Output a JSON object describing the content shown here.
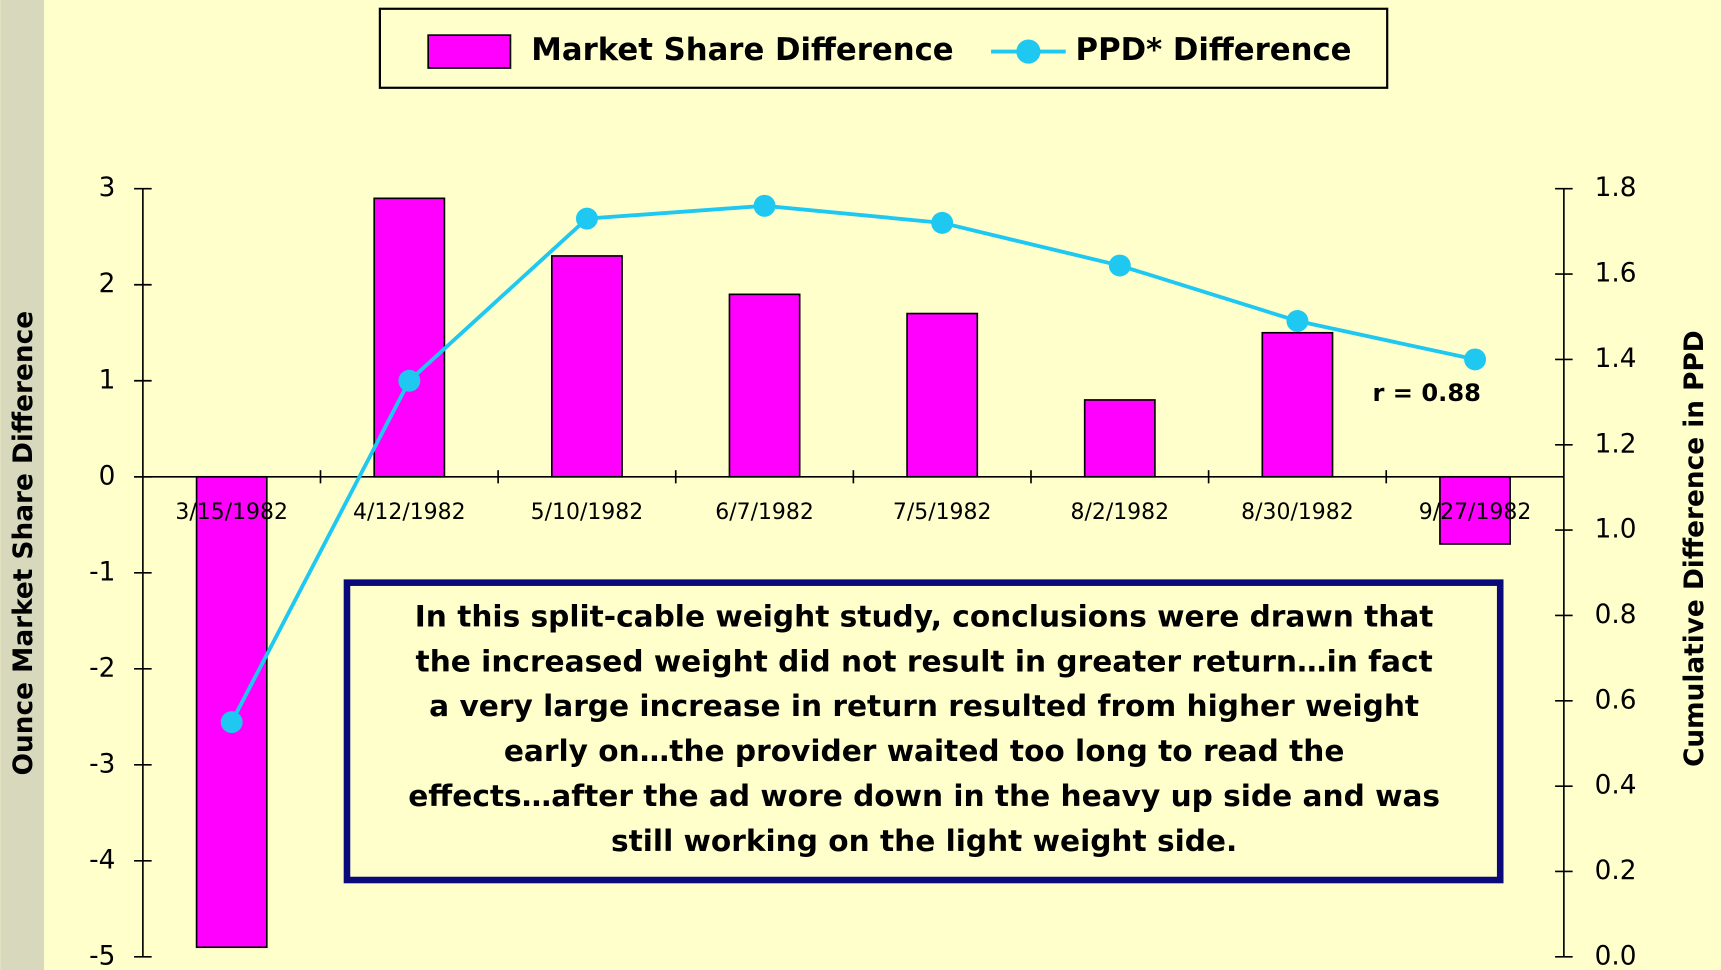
{
  "chart_data": {
    "type": "bar_line",
    "categories": [
      "3/15/1982",
      "4/12/1982",
      "5/10/1982",
      "6/7/1982",
      "7/5/1982",
      "8/2/1982",
      "8/30/1982",
      "9/27/1982"
    ],
    "series": [
      {
        "name": "Market Share Difference",
        "type": "bar",
        "color": "#ff00ff",
        "values": [
          -4.9,
          2.9,
          2.3,
          1.9,
          1.7,
          0.8,
          1.5,
          -0.7
        ]
      },
      {
        "name": "PPD* Difference",
        "type": "line",
        "axis": "y2",
        "color": "#1ec8f0",
        "values": [
          0.55,
          1.35,
          1.73,
          1.76,
          1.72,
          1.62,
          1.49,
          1.4
        ]
      }
    ],
    "y_label": "Ounce Market Share Difference",
    "y2_label": "Cumulative Difference in PPD",
    "ylim": [
      -5,
      3
    ],
    "yticks": [
      -5,
      -4,
      -3,
      -2,
      -1,
      0,
      1,
      2,
      3
    ],
    "y2lim": [
      0,
      1.8
    ],
    "y2ticks": [
      {
        "value": 0,
        "label": "0.0"
      },
      0.2,
      0.4,
      0.6,
      0.8,
      {
        "value": 1,
        "label": "1.0"
      },
      1.2,
      1.4,
      1.6,
      1.8
    ],
    "legend": "top",
    "r_annotation": "r = 0.88",
    "annotation": [
      "In this split-cable weight study, conclusions were drawn that",
      "the increased weight did not result in greater return…in fact",
      "a very large increase in return resulted from higher weight",
      "early on…the provider waited too long to read the",
      "effects…after the ad wore down in the heavy up side and was",
      "still working on the light weight side."
    ]
  }
}
